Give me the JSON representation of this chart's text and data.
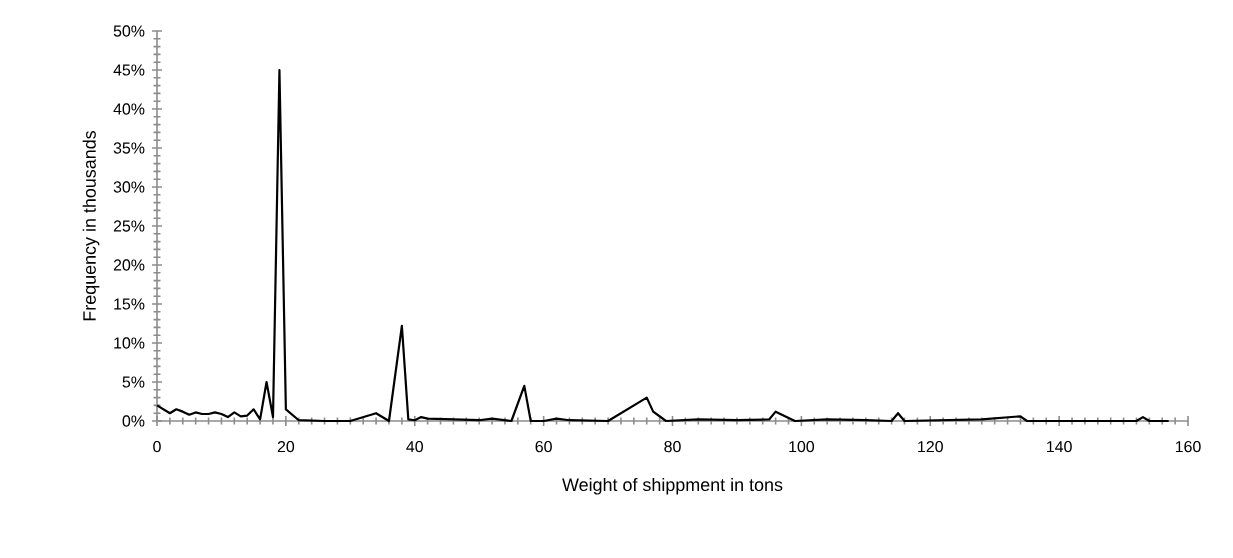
{
  "chart_data": {
    "type": "line",
    "xlabel": "Weight of shippment in tons",
    "ylabel": "Frequency in thousands",
    "xlim": [
      0,
      160
    ],
    "xticks": [
      0,
      20,
      40,
      60,
      80,
      100,
      120,
      140,
      160
    ],
    "ylim": [
      0,
      50
    ],
    "yticks": [
      {
        "value": 0,
        "label": "0%"
      },
      {
        "value": 5,
        "label": "5%"
      },
      {
        "value": 10,
        "label": "10%"
      },
      {
        "value": 15,
        "label": "15%"
      },
      {
        "value": 20,
        "label": "20%"
      },
      {
        "value": 25,
        "label": "25%"
      },
      {
        "value": 30,
        "label": "30%"
      },
      {
        "value": 35,
        "label": "35%"
      },
      {
        "value": 40,
        "label": "40%"
      },
      {
        "value": 45,
        "label": "45%"
      },
      {
        "value": 50,
        "label": "50%"
      }
    ],
    "grid": false,
    "marker": "none",
    "line_style": "solid",
    "series": [
      {
        "color": "#000000",
        "x": [
          0,
          2,
          3,
          4,
          5,
          6,
          7,
          8,
          9,
          10,
          11,
          12,
          13,
          14,
          15,
          16,
          17,
          18,
          19,
          20,
          22,
          26,
          30,
          34,
          36,
          38,
          39,
          40,
          41,
          42,
          46,
          50,
          52,
          54,
          55,
          57,
          58,
          60,
          62,
          64,
          70,
          76,
          77,
          79,
          84,
          90,
          95,
          96,
          99,
          104,
          110,
          114,
          115,
          116,
          128,
          134,
          135,
          150,
          152,
          153,
          154,
          157
        ],
        "values": [
          2.0,
          1.0,
          1.5,
          1.2,
          0.8,
          1.1,
          0.9,
          0.9,
          1.1,
          0.9,
          0.5,
          1.1,
          0.6,
          0.7,
          1.5,
          0.2,
          5.0,
          0.5,
          45,
          1.5,
          0.1,
          0,
          0,
          1.0,
          0,
          12.2,
          0.2,
          0.1,
          0.5,
          0.3,
          0.2,
          0.1,
          0.3,
          0.1,
          0,
          4.5,
          0,
          0,
          0.3,
          0.1,
          0,
          3.0,
          1.2,
          0,
          0.2,
          0.1,
          0.2,
          1.2,
          0,
          0.2,
          0.1,
          0,
          1.0,
          0,
          0.2,
          0.6,
          0,
          0,
          0,
          0.5,
          0,
          0
        ]
      }
    ]
  }
}
